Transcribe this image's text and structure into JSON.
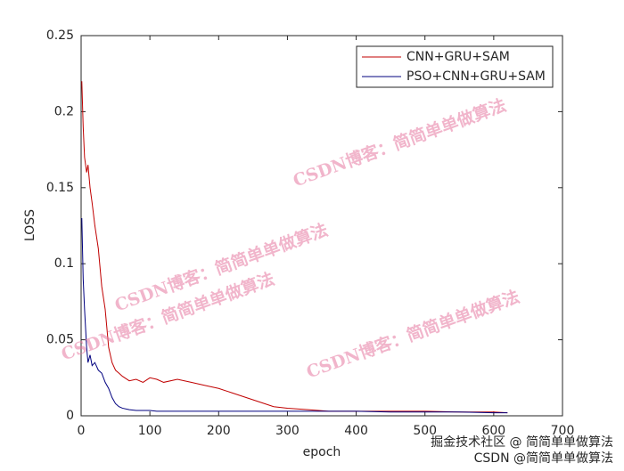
{
  "chart_data": {
    "type": "line",
    "x_label": "epoch",
    "y_label": "LOSS",
    "x": [
      1,
      3,
      5,
      8,
      10,
      13,
      16,
      20,
      25,
      30,
      35,
      40,
      45,
      50,
      55,
      60,
      70,
      80,
      90,
      100,
      110,
      120,
      140,
      160,
      180,
      200,
      220,
      240,
      260,
      280,
      300,
      330,
      360,
      400,
      450,
      500,
      550,
      600,
      620
    ],
    "series": [
      {
        "name": "CNN+GRU+SAM",
        "color": "#c00000",
        "values": [
          0.22,
          0.19,
          0.17,
          0.16,
          0.165,
          0.15,
          0.14,
          0.125,
          0.11,
          0.085,
          0.07,
          0.045,
          0.035,
          0.03,
          0.028,
          0.026,
          0.023,
          0.024,
          0.022,
          0.025,
          0.024,
          0.022,
          0.024,
          0.022,
          0.02,
          0.018,
          0.015,
          0.012,
          0.009,
          0.006,
          0.005,
          0.004,
          0.003,
          0.003,
          0.003,
          0.003,
          0.0025,
          0.0025,
          0.002
        ]
      },
      {
        "name": "PSO+CNN+GRU+SAM",
        "color": "#00007f",
        "values": [
          0.13,
          0.09,
          0.07,
          0.045,
          0.035,
          0.04,
          0.033,
          0.035,
          0.03,
          0.028,
          0.022,
          0.018,
          0.012,
          0.008,
          0.006,
          0.005,
          0.004,
          0.0035,
          0.0035,
          0.0035,
          0.003,
          0.003,
          0.003,
          0.003,
          0.003,
          0.003,
          0.003,
          0.003,
          0.003,
          0.003,
          0.003,
          0.003,
          0.003,
          0.003,
          0.0025,
          0.0025,
          0.0025,
          0.002,
          0.002
        ]
      }
    ],
    "xlim": [
      0,
      700
    ],
    "xticks": [
      0,
      100,
      200,
      300,
      400,
      500,
      600,
      700
    ],
    "ylim": [
      0,
      0.25
    ],
    "yticks": [
      0,
      0.05,
      0.1,
      0.15,
      0.2,
      0.25
    ],
    "legend_position": "upper right",
    "watermarks": [
      "CSDN博客：简简单单做算法",
      "CSDN博客：简简单单做算法",
      "CSDN博客：简简单单做算法",
      "CSDN博客：简简单单做算法"
    ],
    "footer_watermarks": [
      "掘金技术社区 @ 简简单单做算法",
      "CSDN @简简单单做算法"
    ]
  }
}
